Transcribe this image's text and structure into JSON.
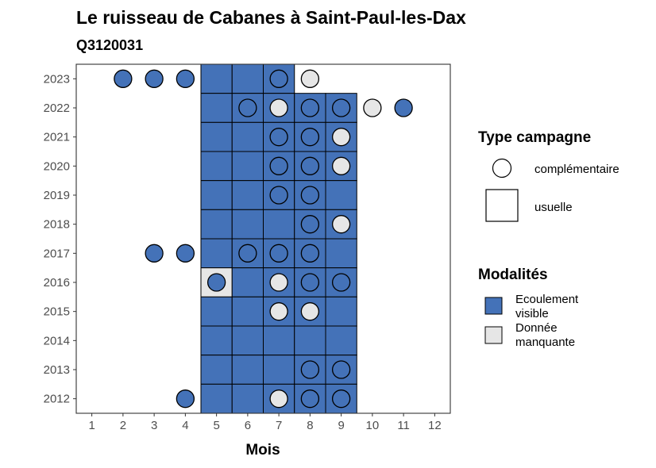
{
  "colors": {
    "visible": "#4472b8",
    "missing": "#e6e6e6",
    "stroke": "#000000",
    "panel_border": "#333333",
    "tick_text": "#4d4d4d"
  },
  "chart_data": {
    "type": "heatmap",
    "title": "Le ruisseau de Cabanes à Saint-Paul-les-Dax",
    "subtitle": "Q3120031",
    "xlabel": "Mois",
    "ylabel": "",
    "x_ticks": [
      1,
      2,
      3,
      4,
      5,
      6,
      7,
      8,
      9,
      10,
      11,
      12
    ],
    "y_ticks": [
      2012,
      2013,
      2014,
      2015,
      2016,
      2017,
      2018,
      2019,
      2020,
      2021,
      2022,
      2023
    ],
    "xlim": [
      0.5,
      12.5
    ],
    "ylim": [
      2011.5,
      2023.5
    ],
    "grid": false,
    "legend_position": "right",
    "legend": {
      "shape_title": "Type campagne",
      "shape_items": [
        {
          "key": "complementaire",
          "label": "complémentaire",
          "shape": "circle"
        },
        {
          "key": "usuelle",
          "label": "usuelle",
          "shape": "square"
        }
      ],
      "fill_title": "Modalités",
      "fill_items": [
        {
          "key": "visible",
          "label_lines": [
            "Ecoulement",
            "visible"
          ]
        },
        {
          "key": "missing",
          "label_lines": [
            "Donnée",
            "manquante"
          ]
        }
      ]
    },
    "tiles": [
      {
        "year": 2023,
        "month": 5,
        "value": "visible"
      },
      {
        "year": 2023,
        "month": 6,
        "value": "visible"
      },
      {
        "year": 2023,
        "month": 7,
        "value": "visible"
      },
      {
        "year": 2022,
        "month": 5,
        "value": "visible"
      },
      {
        "year": 2022,
        "month": 6,
        "value": "visible"
      },
      {
        "year": 2022,
        "month": 7,
        "value": "visible"
      },
      {
        "year": 2022,
        "month": 8,
        "value": "visible"
      },
      {
        "year": 2022,
        "month": 9,
        "value": "visible"
      },
      {
        "year": 2021,
        "month": 5,
        "value": "visible"
      },
      {
        "year": 2021,
        "month": 6,
        "value": "visible"
      },
      {
        "year": 2021,
        "month": 7,
        "value": "visible"
      },
      {
        "year": 2021,
        "month": 8,
        "value": "visible"
      },
      {
        "year": 2021,
        "month": 9,
        "value": "visible"
      },
      {
        "year": 2020,
        "month": 5,
        "value": "visible"
      },
      {
        "year": 2020,
        "month": 6,
        "value": "visible"
      },
      {
        "year": 2020,
        "month": 7,
        "value": "visible"
      },
      {
        "year": 2020,
        "month": 8,
        "value": "visible"
      },
      {
        "year": 2020,
        "month": 9,
        "value": "visible"
      },
      {
        "year": 2019,
        "month": 5,
        "value": "visible"
      },
      {
        "year": 2019,
        "month": 6,
        "value": "visible"
      },
      {
        "year": 2019,
        "month": 7,
        "value": "visible"
      },
      {
        "year": 2019,
        "month": 8,
        "value": "visible"
      },
      {
        "year": 2019,
        "month": 9,
        "value": "visible"
      },
      {
        "year": 2018,
        "month": 5,
        "value": "visible"
      },
      {
        "year": 2018,
        "month": 6,
        "value": "visible"
      },
      {
        "year": 2018,
        "month": 7,
        "value": "visible"
      },
      {
        "year": 2018,
        "month": 8,
        "value": "visible"
      },
      {
        "year": 2018,
        "month": 9,
        "value": "visible"
      },
      {
        "year": 2017,
        "month": 5,
        "value": "visible"
      },
      {
        "year": 2017,
        "month": 6,
        "value": "visible"
      },
      {
        "year": 2017,
        "month": 7,
        "value": "visible"
      },
      {
        "year": 2017,
        "month": 8,
        "value": "visible"
      },
      {
        "year": 2017,
        "month": 9,
        "value": "visible"
      },
      {
        "year": 2016,
        "month": 5,
        "value": "missing"
      },
      {
        "year": 2016,
        "month": 6,
        "value": "visible"
      },
      {
        "year": 2016,
        "month": 7,
        "value": "visible"
      },
      {
        "year": 2016,
        "month": 8,
        "value": "visible"
      },
      {
        "year": 2016,
        "month": 9,
        "value": "visible"
      },
      {
        "year": 2015,
        "month": 5,
        "value": "visible"
      },
      {
        "year": 2015,
        "month": 6,
        "value": "visible"
      },
      {
        "year": 2015,
        "month": 7,
        "value": "visible"
      },
      {
        "year": 2015,
        "month": 8,
        "value": "visible"
      },
      {
        "year": 2015,
        "month": 9,
        "value": "visible"
      },
      {
        "year": 2014,
        "month": 5,
        "value": "visible"
      },
      {
        "year": 2014,
        "month": 6,
        "value": "visible"
      },
      {
        "year": 2014,
        "month": 7,
        "value": "visible"
      },
      {
        "year": 2014,
        "month": 8,
        "value": "visible"
      },
      {
        "year": 2014,
        "month": 9,
        "value": "visible"
      },
      {
        "year": 2013,
        "month": 5,
        "value": "visible"
      },
      {
        "year": 2013,
        "month": 6,
        "value": "visible"
      },
      {
        "year": 2013,
        "month": 7,
        "value": "visible"
      },
      {
        "year": 2013,
        "month": 8,
        "value": "visible"
      },
      {
        "year": 2013,
        "month": 9,
        "value": "visible"
      },
      {
        "year": 2012,
        "month": 5,
        "value": "visible"
      },
      {
        "year": 2012,
        "month": 6,
        "value": "visible"
      },
      {
        "year": 2012,
        "month": 7,
        "value": "visible"
      },
      {
        "year": 2012,
        "month": 8,
        "value": "visible"
      },
      {
        "year": 2012,
        "month": 9,
        "value": "visible"
      }
    ],
    "points": [
      {
        "year": 2023,
        "month": 2,
        "value": "visible"
      },
      {
        "year": 2023,
        "month": 3,
        "value": "visible"
      },
      {
        "year": 2023,
        "month": 4,
        "value": "visible"
      },
      {
        "year": 2023,
        "month": 7,
        "value": "visible"
      },
      {
        "year": 2023,
        "month": 8,
        "value": "missing"
      },
      {
        "year": 2022,
        "month": 6,
        "value": "visible"
      },
      {
        "year": 2022,
        "month": 7,
        "value": "missing"
      },
      {
        "year": 2022,
        "month": 8,
        "value": "visible"
      },
      {
        "year": 2022,
        "month": 9,
        "value": "visible"
      },
      {
        "year": 2022,
        "month": 10,
        "value": "missing"
      },
      {
        "year": 2022,
        "month": 11,
        "value": "visible"
      },
      {
        "year": 2021,
        "month": 7,
        "value": "visible"
      },
      {
        "year": 2021,
        "month": 8,
        "value": "visible"
      },
      {
        "year": 2021,
        "month": 9,
        "value": "missing"
      },
      {
        "year": 2020,
        "month": 7,
        "value": "visible"
      },
      {
        "year": 2020,
        "month": 8,
        "value": "visible"
      },
      {
        "year": 2020,
        "month": 9,
        "value": "missing"
      },
      {
        "year": 2019,
        "month": 7,
        "value": "visible"
      },
      {
        "year": 2019,
        "month": 8,
        "value": "visible"
      },
      {
        "year": 2018,
        "month": 8,
        "value": "visible"
      },
      {
        "year": 2018,
        "month": 9,
        "value": "missing"
      },
      {
        "year": 2017,
        "month": 3,
        "value": "visible"
      },
      {
        "year": 2017,
        "month": 4,
        "value": "visible"
      },
      {
        "year": 2017,
        "month": 6,
        "value": "visible"
      },
      {
        "year": 2017,
        "month": 7,
        "value": "visible"
      },
      {
        "year": 2017,
        "month": 8,
        "value": "visible"
      },
      {
        "year": 2016,
        "month": 5,
        "value": "visible"
      },
      {
        "year": 2016,
        "month": 7,
        "value": "missing"
      },
      {
        "year": 2016,
        "month": 8,
        "value": "visible"
      },
      {
        "year": 2016,
        "month": 9,
        "value": "visible"
      },
      {
        "year": 2015,
        "month": 7,
        "value": "missing"
      },
      {
        "year": 2015,
        "month": 8,
        "value": "missing"
      },
      {
        "year": 2013,
        "month": 8,
        "value": "visible"
      },
      {
        "year": 2013,
        "month": 9,
        "value": "visible"
      },
      {
        "year": 2012,
        "month": 4,
        "value": "visible"
      },
      {
        "year": 2012,
        "month": 7,
        "value": "missing"
      },
      {
        "year": 2012,
        "month": 8,
        "value": "visible"
      },
      {
        "year": 2012,
        "month": 9,
        "value": "visible"
      }
    ]
  }
}
